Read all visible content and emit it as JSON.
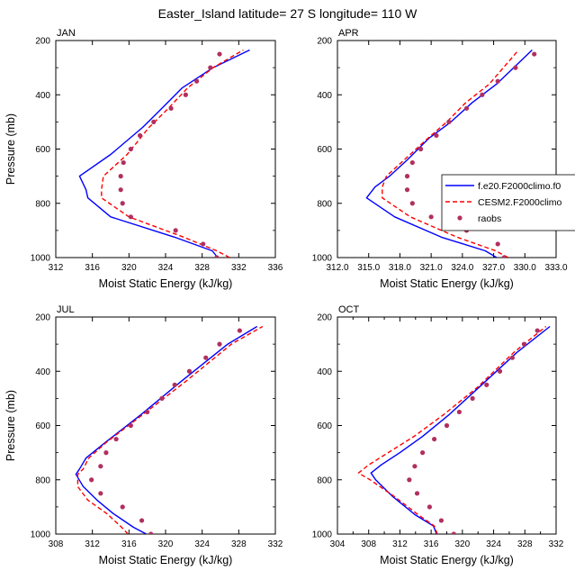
{
  "figure": {
    "title": "Easter_Island  latitude= 27 S longitude= 110 W",
    "background": "#ffffff"
  },
  "legend": {
    "entries": [
      {
        "label": "f.e20.F2000climo.f0",
        "color": "#0000ff",
        "style": "solid"
      },
      {
        "label": "CESM2.F2000climo",
        "color": "#ff0000",
        "style": "dashed"
      },
      {
        "label": "raobs",
        "color": "#b03060",
        "style": "marker"
      }
    ]
  },
  "chart_data": [
    {
      "type": "line",
      "title": "JAN",
      "xlabel": "Moist Static Energy (kJ/kg)",
      "ylabel": "Pressure (mb)",
      "xlim": [
        312,
        336
      ],
      "xticks": [
        312,
        316,
        320,
        324,
        328,
        332,
        336
      ],
      "xtick_labels": [
        "312",
        "316",
        "320",
        "324",
        "328",
        "332",
        "336"
      ],
      "ylim": [
        1000,
        200
      ],
      "yticks": [
        200,
        400,
        600,
        800,
        1000
      ],
      "ytick_labels": [
        "200",
        "400",
        "600",
        "800",
        "1000"
      ],
      "series": [
        {
          "name": "f.e20.F2000climo.f0",
          "color": "#0000ff",
          "style": "solid",
          "x": [
            329.7,
            329.1,
            325.0,
            318.0,
            315.5,
            315.3,
            314.6,
            318.0,
            321.5,
            323.6,
            325.8,
            329.2,
            333.2
          ],
          "y": [
            1000,
            975,
            925,
            850,
            780,
            750,
            700,
            620,
            520,
            450,
            375,
            300,
            235
          ]
        },
        {
          "name": "CESM2.F2000climo",
          "color": "#ff0000",
          "style": "dashed",
          "x": [
            331.0,
            329.6,
            326.0,
            320.0,
            317.0,
            317.0,
            317.2,
            319.8,
            322.2,
            324.3,
            326.4,
            329.2,
            332.5
          ],
          "y": [
            1000,
            975,
            925,
            850,
            780,
            750,
            700,
            620,
            520,
            450,
            375,
            300,
            235
          ]
        },
        {
          "name": "raobs",
          "color": "#b03060",
          "style": "marker",
          "x": [
            329.6,
            328.1,
            325.1,
            320.2,
            319.3,
            319.1,
            319.1,
            319.4,
            320.2,
            321.2,
            322.7,
            324.6,
            326.2,
            327.4,
            328.9,
            329.9
          ],
          "y": [
            1000,
            950,
            900,
            850,
            800,
            750,
            700,
            650,
            600,
            550,
            500,
            450,
            400,
            350,
            300,
            250
          ]
        }
      ]
    },
    {
      "type": "line",
      "title": "APR",
      "xlabel": "Moist Static Energy (kJ/kg)",
      "ylabel": "",
      "xlim": [
        312,
        333
      ],
      "xticks": [
        312,
        315,
        318,
        321,
        324,
        327,
        330,
        333
      ],
      "xtick_labels": [
        "312.0",
        "315.0",
        "318.0",
        "321.0",
        "324.0",
        "327.0",
        "330.0",
        "333.0"
      ],
      "ylim": [
        1000,
        200
      ],
      "yticks": [
        200,
        400,
        600,
        800,
        1000
      ],
      "ytick_labels": [
        "200",
        "400",
        "600",
        "800",
        "1000"
      ],
      "series": [
        {
          "name": "f.e20.F2000climo.f0",
          "color": "#0000ff",
          "style": "solid",
          "x": [
            327.3,
            326.2,
            322.0,
            317.5,
            314.8,
            315.6,
            317.0,
            318.7,
            320.8,
            322.9,
            324.9,
            327.3,
            330.7
          ],
          "y": [
            1000,
            975,
            925,
            850,
            780,
            740,
            700,
            640,
            560,
            500,
            430,
            360,
            235
          ]
        },
        {
          "name": "CESM2.F2000climo",
          "color": "#ff0000",
          "style": "dashed",
          "x": [
            328.4,
            327.2,
            323.5,
            319.0,
            316.3,
            316.3,
            316.7,
            318.4,
            320.7,
            322.5,
            324.3,
            326.6,
            329.4
          ],
          "y": [
            1000,
            975,
            925,
            850,
            780,
            740,
            700,
            640,
            560,
            500,
            430,
            360,
            235
          ]
        },
        {
          "name": "raobs",
          "color": "#b03060",
          "style": "marker",
          "x": [
            328.0,
            327.4,
            324.4,
            321.0,
            319.2,
            318.7,
            318.7,
            319.2,
            320.0,
            321.5,
            322.7,
            324.4,
            325.9,
            327.4,
            329.1,
            330.9
          ],
          "y": [
            1000,
            950,
            900,
            850,
            800,
            750,
            700,
            650,
            600,
            550,
            500,
            450,
            400,
            350,
            300,
            250
          ]
        }
      ]
    },
    {
      "type": "line",
      "title": "JUL",
      "xlabel": "Moist Static Energy (kJ/kg)",
      "ylabel": "Pressure (mb)",
      "xlim": [
        308,
        332
      ],
      "xticks": [
        308,
        312,
        316,
        320,
        324,
        328,
        332
      ],
      "xtick_labels": [
        "308",
        "312",
        "316",
        "320",
        "324",
        "328",
        "332"
      ],
      "ylim": [
        1000,
        200
      ],
      "yticks": [
        200,
        400,
        600,
        800,
        1000
      ],
      "ytick_labels": [
        "200",
        "400",
        "600",
        "800",
        "1000"
      ],
      "series": [
        {
          "name": "f.e20.F2000climo.f0",
          "color": "#0000ff",
          "style": "solid",
          "x": [
            317.9,
            316.5,
            314.3,
            312.5,
            311.0,
            310.2,
            310.6,
            311.3,
            313.5,
            317.3,
            321.6,
            326.8,
            330.0
          ],
          "y": [
            1000,
            975,
            925,
            875,
            825,
            780,
            760,
            720,
            660,
            560,
            440,
            300,
            235
          ]
        },
        {
          "name": "CESM2.F2000climo",
          "color": "#ff0000",
          "style": "dashed",
          "x": [
            315.9,
            315.2,
            313.6,
            311.5,
            310.4,
            310.4,
            311.0,
            311.6,
            313.6,
            317.5,
            322.1,
            327.2,
            330.6
          ],
          "y": [
            1000,
            975,
            925,
            875,
            825,
            780,
            760,
            720,
            660,
            560,
            440,
            300,
            235
          ]
        },
        {
          "name": "raobs",
          "color": "#b03060",
          "style": "marker",
          "x": [
            318.4,
            317.4,
            315.3,
            312.9,
            311.9,
            312.9,
            313.5,
            314.6,
            316.2,
            318.0,
            319.6,
            321.0,
            322.6,
            324.4,
            325.9,
            328.1
          ],
          "y": [
            1000,
            950,
            900,
            850,
            800,
            750,
            700,
            650,
            600,
            550,
            500,
            450,
            400,
            350,
            300,
            250
          ]
        }
      ]
    },
    {
      "type": "line",
      "title": "OCT",
      "xlabel": "Moist Static Energy (kJ/kg)",
      "ylabel": "",
      "xlim": [
        304,
        332
      ],
      "xticks": [
        304,
        306,
        308,
        310,
        312,
        314,
        316,
        318,
        320,
        322,
        324,
        326,
        328,
        330,
        332
      ],
      "xtick_labels": [
        "304",
        "",
        "308",
        "",
        "312",
        "",
        "316",
        "",
        "320",
        "",
        "324",
        "",
        "328",
        "",
        "332"
      ],
      "ylim": [
        1000,
        200
      ],
      "yticks": [
        200,
        400,
        600,
        800,
        1000
      ],
      "ytick_labels": [
        "200",
        "400",
        "600",
        "800",
        "1000"
      ],
      "series": [
        {
          "name": "f.e20.F2000climo.f0",
          "color": "#0000ff",
          "style": "solid",
          "x": [
            316.7,
            316.3,
            314.0,
            311.0,
            308.9,
            308.3,
            309.6,
            312.0,
            314.9,
            318.3,
            322.1,
            327.0,
            331.2
          ],
          "y": [
            1000,
            970,
            930,
            860,
            800,
            775,
            745,
            700,
            640,
            560,
            460,
            330,
            235
          ]
        },
        {
          "name": "CESM2.F2000climo",
          "color": "#ff0000",
          "style": "dashed",
          "x": [
            316.8,
            316.4,
            314.4,
            311.2,
            308.2,
            306.7,
            308.0,
            310.5,
            313.8,
            317.6,
            321.9,
            326.6,
            330.7
          ],
          "y": [
            1000,
            970,
            930,
            860,
            800,
            775,
            745,
            700,
            640,
            560,
            460,
            330,
            235
          ]
        },
        {
          "name": "raobs",
          "color": "#b03060",
          "style": "marker",
          "x": [
            318.9,
            317.3,
            315.8,
            314.2,
            313.2,
            313.9,
            314.9,
            316.4,
            318.0,
            319.6,
            321.3,
            323.1,
            324.8,
            326.4,
            327.9,
            329.6
          ],
          "y": [
            1000,
            950,
            900,
            850,
            800,
            750,
            700,
            650,
            600,
            550,
            500,
            450,
            400,
            350,
            300,
            250
          ]
        }
      ]
    }
  ]
}
